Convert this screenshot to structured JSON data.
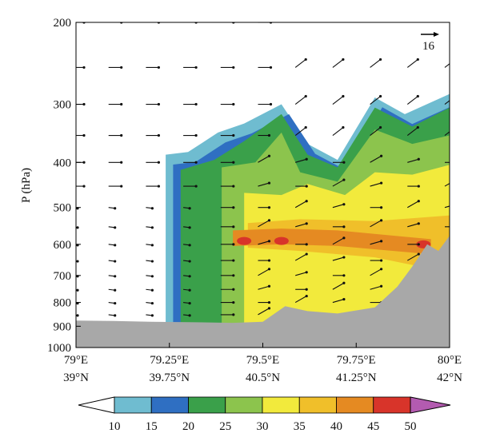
{
  "chart_data": {
    "type": "heatmap",
    "ylabel": "P (hPa)",
    "y_axis": {
      "scale": "log",
      "range": [
        1000,
        200
      ],
      "ticks": [
        200,
        300,
        400,
        500,
        600,
        700,
        800,
        900,
        1000
      ],
      "tick_labels": [
        "200",
        "300",
        "400",
        "500",
        "600",
        "700",
        "800",
        "900",
        "1000"
      ]
    },
    "x_axis": {
      "range": [
        79.0,
        80.0
      ],
      "ticks": [
        79.0,
        79.25,
        79.5,
        79.75,
        80.0
      ],
      "tick_labels_lon": [
        "79°E",
        "79.25°E",
        "79.5°E",
        "79.75°E",
        "80°E"
      ],
      "tick_labels_lat": [
        "39°N",
        "39.75°N",
        "40.5°N",
        "41.25°N",
        "42°N"
      ]
    },
    "colorbar": {
      "levels": [
        10,
        15,
        20,
        25,
        30,
        35,
        40,
        45,
        50
      ],
      "labels": [
        "10",
        "15",
        "20",
        "25",
        "30",
        "35",
        "40",
        "45",
        "50"
      ],
      "colors": [
        "#ffffff",
        "#6fbcd0",
        "#2f6fc2",
        "#3aa04a",
        "#8cc44d",
        "#f2ea3c",
        "#f0bf2a",
        "#e58a22",
        "#d8342a",
        "#b35bb0"
      ]
    },
    "reference_vector": {
      "label": "16",
      "magnitude": 16
    },
    "terrain": {
      "color": "#a8a8a8",
      "profile": [
        {
          "x": 79.0,
          "p": 875
        },
        {
          "x": 79.1,
          "p": 877
        },
        {
          "x": 79.2,
          "p": 880
        },
        {
          "x": 79.3,
          "p": 882
        },
        {
          "x": 79.42,
          "p": 885
        },
        {
          "x": 79.5,
          "p": 880
        },
        {
          "x": 79.56,
          "p": 815
        },
        {
          "x": 79.62,
          "p": 835
        },
        {
          "x": 79.7,
          "p": 845
        },
        {
          "x": 79.8,
          "p": 820
        },
        {
          "x": 79.86,
          "p": 740
        },
        {
          "x": 79.9,
          "p": 670
        },
        {
          "x": 79.94,
          "p": 600
        },
        {
          "x": 79.97,
          "p": 620
        },
        {
          "x": 80.0,
          "p": 575
        }
      ]
    },
    "contour_fill_bands": [
      {
        "level": 10,
        "top": [
          [
            79.24,
            385
          ],
          [
            79.3,
            380
          ],
          [
            79.38,
            345
          ],
          [
            79.45,
            330
          ],
          [
            79.55,
            300
          ],
          [
            79.62,
            365
          ],
          [
            79.7,
            395
          ],
          [
            79.8,
            290
          ],
          [
            79.88,
            315
          ],
          [
            80.0,
            285
          ]
        ]
      },
      {
        "level": 20,
        "top": [
          [
            79.28,
            415
          ],
          [
            79.37,
            395
          ],
          [
            79.45,
            360
          ],
          [
            79.55,
            315
          ],
          [
            79.62,
            385
          ],
          [
            79.7,
            410
          ],
          [
            79.8,
            305
          ],
          [
            79.9,
            335
          ],
          [
            80.0,
            305
          ]
        ]
      },
      {
        "level": 30,
        "top": [
          [
            79.39,
            410
          ],
          [
            79.48,
            400
          ],
          [
            79.55,
            345
          ],
          [
            79.6,
            420
          ],
          [
            79.7,
            440
          ],
          [
            79.8,
            340
          ],
          [
            79.9,
            365
          ],
          [
            80.0,
            350
          ]
        ]
      },
      {
        "level": 35,
        "top": [
          [
            79.45,
            465
          ],
          [
            79.55,
            470
          ],
          [
            79.62,
            445
          ],
          [
            79.72,
            470
          ],
          [
            79.8,
            420
          ],
          [
            79.9,
            425
          ],
          [
            80.0,
            405
          ]
        ]
      },
      {
        "level": 45,
        "band": [
          [
            79.45,
            555
          ],
          [
            79.6,
            550
          ],
          [
            79.8,
            560
          ],
          [
            79.95,
            585
          ]
        ]
      }
    ]
  }
}
